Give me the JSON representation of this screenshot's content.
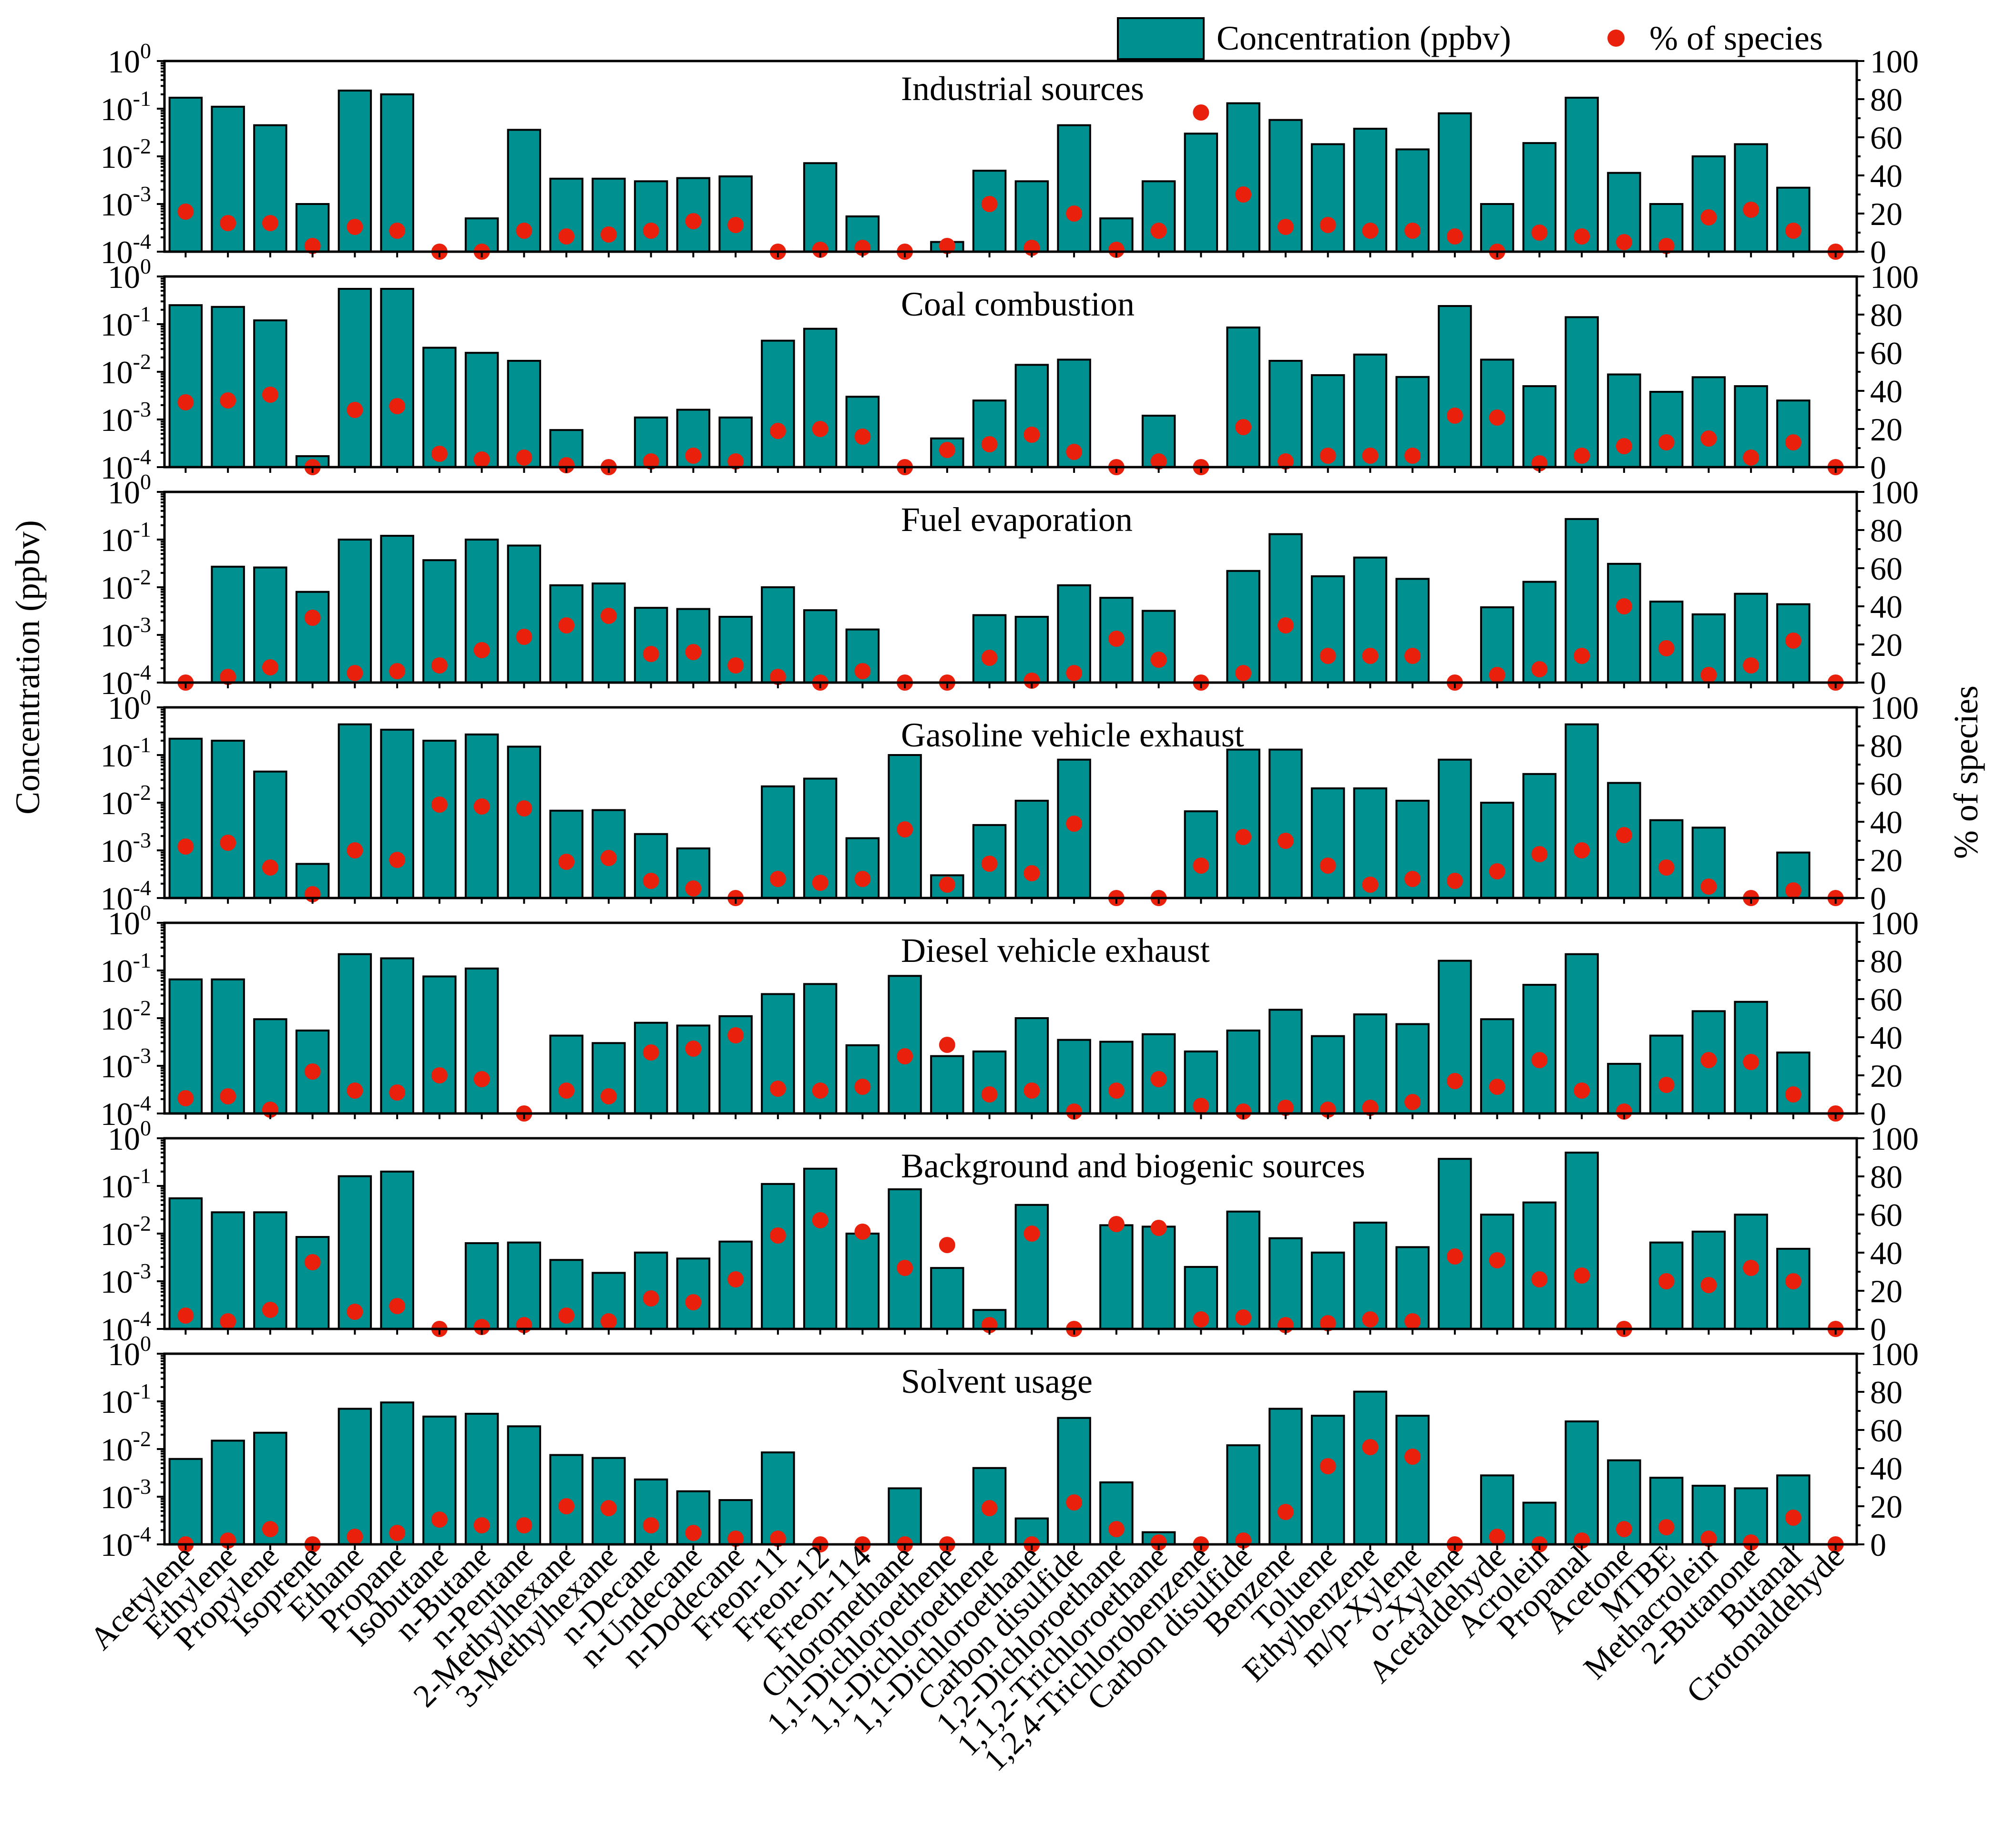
{
  "chart_data": {
    "type": "bar",
    "y_left_label": "Concentration (ppbv)",
    "y_right_label": "% of species",
    "y_left_scale": "log",
    "y_left_range": [
      0.0001,
      1
    ],
    "y_left_ticks": [
      {
        "base": "10",
        "exp": "0"
      },
      {
        "base": "10",
        "exp": "-1"
      },
      {
        "base": "10",
        "exp": "-2"
      },
      {
        "base": "10",
        "exp": "-3"
      },
      {
        "base": "10",
        "exp": "-4"
      }
    ],
    "y_right_range": [
      0,
      100
    ],
    "y_right_ticks": [
      "100",
      "80",
      "60",
      "40",
      "20",
      "0"
    ],
    "legend": {
      "position": "top-right",
      "bar_label": "Concentration (ppbv)",
      "dot_label": "% of species",
      "bar_color": "#009090",
      "dot_color": "#e8200c"
    },
    "categories": [
      "Acetylene",
      "Ethylene",
      "Propylene",
      "Isoprene",
      "Ethane",
      "Propane",
      "Isobutane",
      "n-Butane",
      "n-Pentane",
      "2-Methylhexane",
      "3-Methylhexane",
      "n-Decane",
      "n-Undecane",
      "n-Dodecane",
      "Freon-11",
      "Freon-12",
      "Freon-114",
      "Chloromethane",
      "1,1-Dichloroethene",
      "1,1-Dichloroethene",
      "1,1-Dichloroethane",
      "Carbon disulfide",
      "1,2-Dichloroethane",
      "1,1,2-Trichloroethane",
      "1,2,4-Trichlorobenzene",
      "Carbon disulfide",
      "Benzene",
      "Toluene",
      "Ethylbenzene",
      "m/p-Xylene",
      "o-Xylene",
      "Acetaldehyde",
      "Acrolein",
      "Propanal",
      "Acetone",
      "MTBE",
      "Methacrolein",
      "2-Butanone",
      "Butanal",
      "Crotonaldehyde"
    ],
    "series": [
      {
        "name": "Industrial sources",
        "concentration": [
          0.17,
          0.11,
          0.045,
          0.001,
          0.24,
          0.2,
          0.0001,
          0.0005,
          0.036,
          0.0034,
          0.0034,
          0.003,
          0.0035,
          0.0038,
          0.0001,
          0.0072,
          0.00055,
          0.0001,
          0.00016,
          0.005,
          0.003,
          0.045,
          0.0005,
          0.003,
          0.03,
          0.13,
          0.058,
          0.018,
          0.038,
          0.014,
          0.08,
          0.001,
          0.019,
          0.17,
          0.0045,
          0.001,
          0.01,
          0.018,
          0.0022,
          0.0001
        ],
        "percent": [
          21,
          15,
          15,
          3,
          13,
          11,
          0,
          0,
          11,
          8,
          9,
          11,
          16,
          14,
          0,
          1,
          2,
          0,
          3,
          25,
          2,
          20,
          1,
          11,
          73,
          30,
          13,
          14,
          11,
          11,
          8,
          0,
          10,
          8,
          5,
          3,
          18,
          22,
          11,
          0
        ]
      },
      {
        "name": "Coal combustion",
        "concentration": [
          0.25,
          0.23,
          0.12,
          0.00017,
          0.55,
          0.55,
          0.032,
          0.025,
          0.017,
          0.0006,
          0.0001,
          0.0011,
          0.0016,
          0.0011,
          0.045,
          0.08,
          0.003,
          0.0001,
          0.0004,
          0.0025,
          0.014,
          0.018,
          0.0001,
          0.0012,
          0.0001,
          0.085,
          0.017,
          0.0085,
          0.023,
          0.0078,
          0.24,
          0.018,
          0.005,
          0.14,
          0.0088,
          0.0038,
          0.0077,
          0.005,
          0.0025,
          0.0001
        ],
        "percent": [
          34,
          35,
          38,
          0,
          30,
          32,
          7,
          4,
          5,
          1,
          0,
          3,
          6,
          3,
          19,
          20,
          16,
          0,
          9,
          12,
          17,
          8,
          0,
          3,
          0,
          21,
          3,
          6,
          6,
          6,
          27,
          26,
          2,
          6,
          11,
          13,
          15,
          5,
          13,
          0
        ]
      },
      {
        "name": "Fuel evaporation",
        "concentration": [
          0.0001,
          0.027,
          0.026,
          0.008,
          0.1,
          0.12,
          0.037,
          0.1,
          0.075,
          0.011,
          0.012,
          0.0037,
          0.0035,
          0.0024,
          0.01,
          0.0033,
          0.0013,
          0.0001,
          0.0001,
          0.0026,
          0.0024,
          0.011,
          0.006,
          0.0032,
          0.0001,
          0.022,
          0.13,
          0.017,
          0.042,
          0.015,
          0.0001,
          0.0038,
          0.013,
          0.27,
          0.031,
          0.005,
          0.0027,
          0.0073,
          0.0044,
          0.0001
        ],
        "percent": [
          0,
          3,
          8,
          34,
          5,
          6,
          9,
          17,
          24,
          30,
          35,
          15,
          16,
          9,
          3,
          0,
          6,
          0,
          0,
          13,
          1,
          5,
          23,
          12,
          0,
          5,
          30,
          14,
          14,
          14,
          0,
          4,
          7,
          14,
          40,
          18,
          4,
          9,
          22,
          0
        ]
      },
      {
        "name": "Gasoline vehicle exhaust",
        "concentration": [
          0.22,
          0.2,
          0.045,
          0.00052,
          0.44,
          0.34,
          0.2,
          0.27,
          0.15,
          0.0068,
          0.007,
          0.0022,
          0.0011,
          0.0001,
          0.022,
          0.032,
          0.0018,
          0.1,
          0.0003,
          0.0034,
          0.011,
          0.08,
          0.0001,
          0.0001,
          0.0066,
          0.13,
          0.13,
          0.02,
          0.02,
          0.011,
          0.08,
          0.01,
          0.04,
          0.44,
          0.026,
          0.0043,
          0.003,
          0.0001,
          0.0009,
          0.0001
        ],
        "percent": [
          27,
          29,
          16,
          2,
          25,
          20,
          49,
          48,
          47,
          19,
          21,
          9,
          5,
          0,
          10,
          8,
          10,
          36,
          7,
          18,
          13,
          39,
          0,
          0,
          17,
          32,
          30,
          17,
          7,
          10,
          9,
          14,
          23,
          25,
          33,
          16,
          6,
          0,
          4,
          0
        ]
      },
      {
        "name": "Diesel vehicle exhaust",
        "concentration": [
          0.065,
          0.065,
          0.0095,
          0.0055,
          0.22,
          0.18,
          0.075,
          0.11,
          0.0001,
          0.0043,
          0.003,
          0.008,
          0.007,
          0.011,
          0.032,
          0.052,
          0.0027,
          0.077,
          0.0016,
          0.002,
          0.01,
          0.0035,
          0.0032,
          0.0046,
          0.002,
          0.0055,
          0.015,
          0.0042,
          0.012,
          0.0075,
          0.16,
          0.0095,
          0.05,
          0.22,
          0.0011,
          0.0043,
          0.014,
          0.022,
          0.0019,
          0.0001
        ],
        "percent": [
          8,
          9,
          2,
          22,
          12,
          11,
          20,
          18,
          0,
          12,
          9,
          32,
          34,
          41,
          13,
          12,
          14,
          30,
          36,
          10,
          12,
          1,
          12,
          18,
          4,
          1,
          3,
          2,
          3,
          6,
          17,
          14,
          28,
          12,
          1,
          15,
          28,
          27,
          10,
          0
        ]
      },
      {
        "name": "Background and biogenic sources",
        "concentration": [
          0.055,
          0.028,
          0.028,
          0.0085,
          0.16,
          0.2,
          0.0001,
          0.0063,
          0.0065,
          0.0028,
          0.0015,
          0.004,
          0.003,
          0.0068,
          0.11,
          0.23,
          0.01,
          0.085,
          0.0019,
          0.00025,
          0.04,
          0.0001,
          0.015,
          0.014,
          0.002,
          0.029,
          0.008,
          0.004,
          0.017,
          0.0052,
          0.37,
          0.025,
          0.045,
          0.5,
          0.0001,
          0.0065,
          0.011,
          0.025,
          0.0048,
          0.0001
        ],
        "percent": [
          7,
          4,
          10,
          35,
          9,
          12,
          0,
          1,
          2,
          7,
          4,
          16,
          14,
          26,
          49,
          57,
          51,
          32,
          44,
          2,
          50,
          0,
          55,
          53,
          5,
          6,
          2,
          3,
          5,
          4,
          38,
          36,
          26,
          28,
          0,
          25,
          23,
          32,
          25,
          0
        ]
      },
      {
        "name": "Solvent usage",
        "concentration": [
          0.0062,
          0.015,
          0.022,
          0.0001,
          0.07,
          0.095,
          0.048,
          0.055,
          0.03,
          0.0075,
          0.0065,
          0.0023,
          0.0013,
          0.00085,
          0.0085,
          0.0001,
          0.0001,
          0.0015,
          0.0001,
          0.004,
          0.00035,
          0.045,
          0.002,
          0.00018,
          0.0001,
          0.012,
          0.07,
          0.05,
          0.16,
          0.05,
          0.0001,
          0.0028,
          0.00075,
          0.038,
          0.0058,
          0.0025,
          0.0017,
          0.0015,
          0.0028,
          0.0001
        ],
        "percent": [
          0,
          2,
          8,
          0,
          4,
          6,
          13,
          10,
          10,
          20,
          19,
          10,
          6,
          3,
          3,
          0,
          0,
          0,
          0,
          19,
          0,
          22,
          8,
          1,
          0,
          2,
          17,
          41,
          51,
          46,
          0,
          4,
          0,
          2,
          8,
          9,
          3,
          1,
          14,
          0
        ]
      }
    ]
  }
}
